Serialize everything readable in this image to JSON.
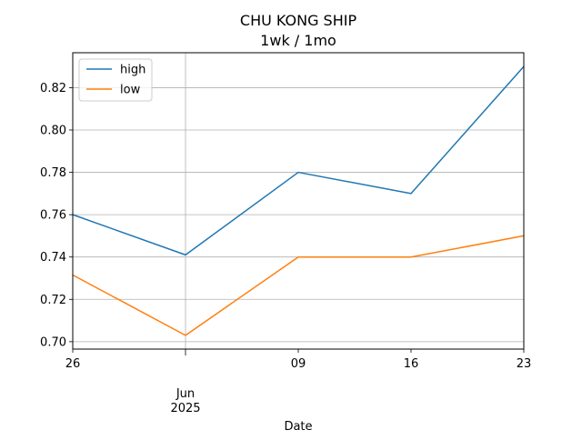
{
  "chart_data": {
    "type": "line",
    "title": "CHU KONG SHIP",
    "subtitle": "1wk / 1mo",
    "xlabel": "Date",
    "ylabel": "",
    "x": [
      "2025-05-26",
      "2025-06-02",
      "2025-06-09",
      "2025-06-16",
      "2025-06-23"
    ],
    "x_tick_labels": [
      {
        "date": "2025-05-26",
        "label": "26",
        "sublabel": ""
      },
      {
        "date": "2025-06-02",
        "label": "Jun",
        "sublabel": "2025"
      },
      {
        "date": "2025-06-09",
        "label": "09",
        "sublabel": ""
      },
      {
        "date": "2025-06-16",
        "label": "16",
        "sublabel": ""
      },
      {
        "date": "2025-06-23",
        "label": "23",
        "sublabel": ""
      }
    ],
    "series": [
      {
        "name": "high",
        "color": "#1f77b4",
        "values": [
          0.76,
          0.741,
          0.78,
          0.77,
          0.83
        ]
      },
      {
        "name": "low",
        "color": "#ff7f0e",
        "values": [
          0.7315,
          0.703,
          0.74,
          0.74,
          0.75
        ]
      }
    ],
    "xlim": [
      "2025-05-26",
      "2025-06-23"
    ],
    "ylim": [
      0.6965,
      0.8365
    ],
    "y_ticks": [
      0.7,
      0.72,
      0.74,
      0.76,
      0.78,
      0.8,
      0.82
    ],
    "y_tick_labels": [
      "0.70",
      "0.72",
      "0.74",
      "0.76",
      "0.78",
      "0.80",
      "0.82"
    ],
    "grid": true,
    "legend_position": "top-left"
  }
}
